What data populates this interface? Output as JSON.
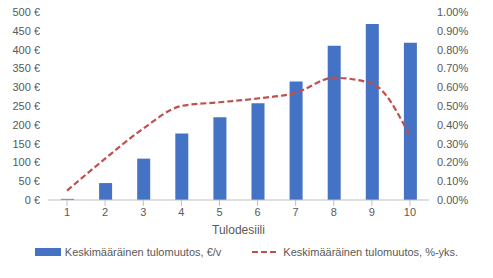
{
  "chart_data": {
    "type": "bar",
    "x_label": "Tulodesiili",
    "categories": [
      "1",
      "2",
      "3",
      "4",
      "5",
      "6",
      "7",
      "8",
      "9",
      "10"
    ],
    "series": [
      {
        "name": "Keskimääräinen tulomuutos, €/v",
        "type": "bar",
        "color": "#4472c4",
        "values": [
          3,
          45,
          110,
          177,
          220,
          257,
          315,
          410,
          468,
          418
        ]
      },
      {
        "name": "Keskimääräinen tulomuutos, %-yks.",
        "type": "line",
        "axis": "y2",
        "color": "#c0504d",
        "line_style": "dashed",
        "values": [
          0.05,
          0.22,
          0.38,
          0.5,
          0.52,
          0.54,
          0.57,
          0.65,
          0.62,
          0.34
        ]
      }
    ],
    "ylim": [
      0,
      500
    ],
    "yticks": [
      {
        "value": 0,
        "label": "0 €"
      },
      {
        "value": 50,
        "label": "50 €"
      },
      {
        "value": 100,
        "label": "100 €"
      },
      {
        "value": 150,
        "label": "150 €"
      },
      {
        "value": 200,
        "label": "200 €"
      },
      {
        "value": 250,
        "label": "250 €"
      },
      {
        "value": 300,
        "label": "300 €"
      },
      {
        "value": 350,
        "label": "350 €"
      },
      {
        "value": 400,
        "label": "400 €"
      },
      {
        "value": 450,
        "label": "450 €"
      },
      {
        "value": 500,
        "label": "500 €"
      }
    ],
    "y2lim": [
      0,
      1
    ],
    "y2ticks": [
      {
        "value": 0,
        "label": "0.00%"
      },
      {
        "value": 0.1,
        "label": "0.10%"
      },
      {
        "value": 0.2,
        "label": "0.20%"
      },
      {
        "value": 0.3,
        "label": "0.30%"
      },
      {
        "value": 0.4,
        "label": "0.40%"
      },
      {
        "value": 0.5,
        "label": "0.50%"
      },
      {
        "value": 0.6,
        "label": "0.60%"
      },
      {
        "value": 0.7,
        "label": "0.70%"
      },
      {
        "value": 0.8,
        "label": "0.80%"
      },
      {
        "value": 0.9,
        "label": "0.90%"
      },
      {
        "value": 1,
        "label": "1.00%"
      }
    ],
    "grid": false,
    "legend": "bottom"
  }
}
